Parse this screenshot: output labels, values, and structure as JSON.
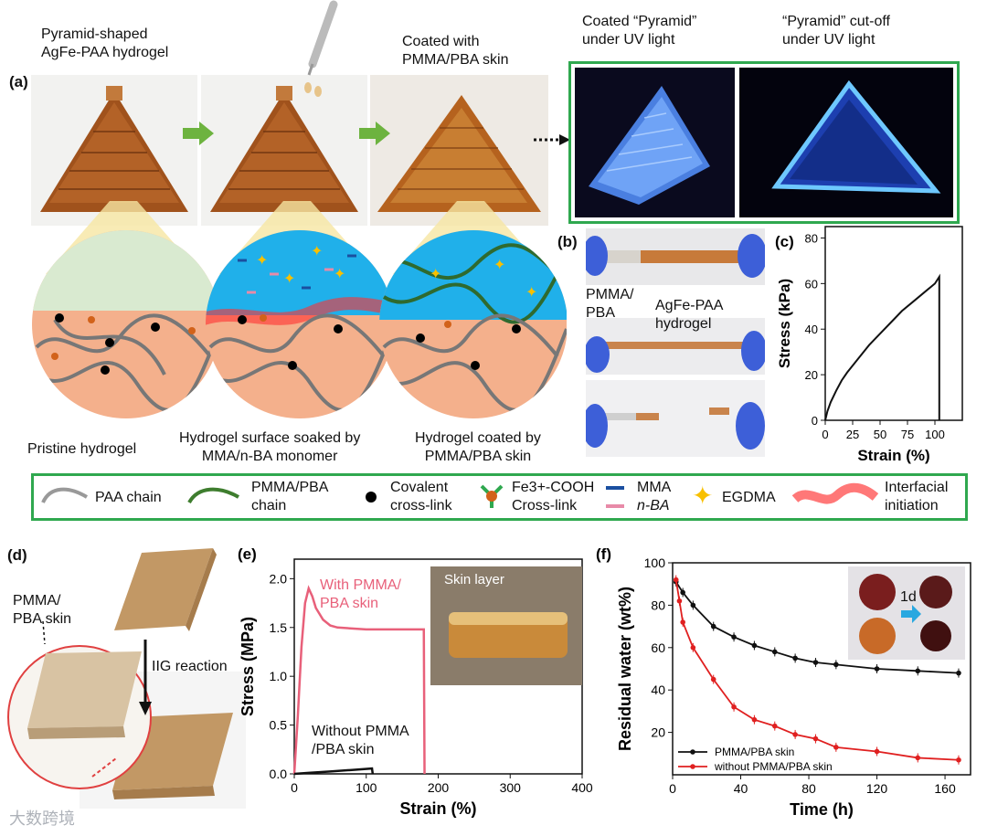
{
  "panel_a": {
    "tag": "(a)",
    "caption_pyramid": [
      "Pyramid-shaped",
      "AgFe-PAA hydrogel"
    ],
    "caption_coated": [
      "Coated with",
      "PMMA/PBA skin"
    ],
    "caption_uv1": [
      "Coated “Pyramid”",
      "under UV light"
    ],
    "caption_uv2": [
      "“Pyramid” cut-off",
      "under UV light"
    ],
    "caption_pristine": "Pristine hydrogel",
    "caption_soaked": [
      "Hydrogel surface soaked by",
      "MMA/n-BA monomer"
    ],
    "caption_skin": [
      "Hydrogel coated by",
      "PMMA/PBA skin"
    ]
  },
  "legend": {
    "paa": "PAA chain",
    "pmma": [
      "PMMA/PBA",
      "chain"
    ],
    "covalent": [
      "Covalent",
      "cross-link"
    ],
    "fe": [
      "Fe3+-COOH",
      "Cross-link"
    ],
    "mma": "MMA",
    "nba": "n-BA",
    "egdma": "EGDMA",
    "interfacial": [
      "Interfacial",
      "initiation"
    ]
  },
  "panel_b": {
    "tag": "(b)",
    "label_skin": [
      "PMMA/",
      "PBA"
    ],
    "label_gel": [
      "AgFe-PAA",
      "hydrogel"
    ]
  },
  "panel_d": {
    "tag": "(d)",
    "label_skin": [
      "PMMA/",
      "PBA skin"
    ],
    "label_reaction": "IIG reaction"
  },
  "panel_e_inset": "Skin layer",
  "watermark": "大数跨境",
  "colors": {
    "green": "#2fa84f",
    "pink": "#e8607a",
    "red": "#e02020",
    "blue": "#29a8e0"
  },
  "chart_data": [
    {
      "panel": "(c)",
      "type": "line",
      "title": "",
      "xlabel": "Strain (%)",
      "ylabel": "Stress (kPa)",
      "xlim": [
        0,
        125
      ],
      "ylim": [
        0,
        85
      ],
      "xticks": [
        0,
        25,
        50,
        75,
        100
      ],
      "yticks": [
        0,
        20,
        40,
        60,
        80
      ],
      "series": [
        {
          "name": "stress-strain",
          "x": [
            0,
            2,
            5,
            10,
            15,
            20,
            25,
            30,
            40,
            50,
            60,
            70,
            80,
            90,
            100,
            104,
            104
          ],
          "y": [
            0,
            4,
            8,
            13,
            17.5,
            21,
            24,
            27,
            33,
            38,
            43,
            48,
            52,
            56,
            60,
            63,
            0
          ]
        }
      ]
    },
    {
      "panel": "(e)",
      "type": "line",
      "title": "",
      "xlabel": "Strain (%)",
      "ylabel": "Stress (MPa)",
      "xlim": [
        0,
        400
      ],
      "ylim": [
        0,
        2.2
      ],
      "xticks": [
        0,
        100,
        200,
        300,
        400
      ],
      "yticks": [
        0.0,
        0.5,
        1.0,
        1.5,
        2.0
      ],
      "series": [
        {
          "name": "With PMMA/ PBA skin",
          "label_lines": [
            "With PMMA/",
            "PBA skin"
          ],
          "color": "#e8607a",
          "x": [
            0,
            5,
            10,
            15,
            20,
            25,
            30,
            40,
            50,
            60,
            80,
            100,
            130,
            160,
            180,
            181
          ],
          "y": [
            0,
            0.6,
            1.3,
            1.75,
            1.9,
            1.82,
            1.7,
            1.58,
            1.52,
            1.5,
            1.49,
            1.48,
            1.48,
            1.48,
            1.48,
            0
          ]
        },
        {
          "name": "Without PMMA /PBA skin",
          "label_lines": [
            "Without PMMA",
            "/PBA skin"
          ],
          "color": "#111111",
          "x": [
            0,
            20,
            50,
            80,
            108,
            109
          ],
          "y": [
            0,
            0.01,
            0.025,
            0.04,
            0.055,
            0
          ]
        }
      ]
    },
    {
      "panel": "(f)",
      "type": "line",
      "title": "",
      "xlabel": "Time (h)",
      "ylabel": "Residual water (wt%)",
      "xlim": [
        0,
        175
      ],
      "ylim": [
        0,
        100
      ],
      "xticks": [
        0,
        40,
        80,
        120,
        160
      ],
      "yticks": [
        20,
        40,
        60,
        80,
        100
      ],
      "inset_label": "1d",
      "series": [
        {
          "name": "PMMA/PBA skin",
          "color": "#111111",
          "x": [
            2,
            6,
            12,
            24,
            36,
            48,
            60,
            72,
            84,
            96,
            120,
            144,
            168
          ],
          "y": [
            91,
            86,
            80,
            70,
            65,
            61,
            58,
            55,
            53,
            52,
            50,
            49,
            48
          ]
        },
        {
          "name": "without PMMA/PBA skin",
          "color": "#e02020",
          "x": [
            2,
            4,
            6,
            12,
            24,
            36,
            48,
            60,
            72,
            84,
            96,
            120,
            144,
            168
          ],
          "y": [
            92,
            82,
            72,
            60,
            45,
            32,
            26,
            23,
            19,
            17,
            13,
            11,
            8,
            7
          ]
        }
      ]
    }
  ]
}
